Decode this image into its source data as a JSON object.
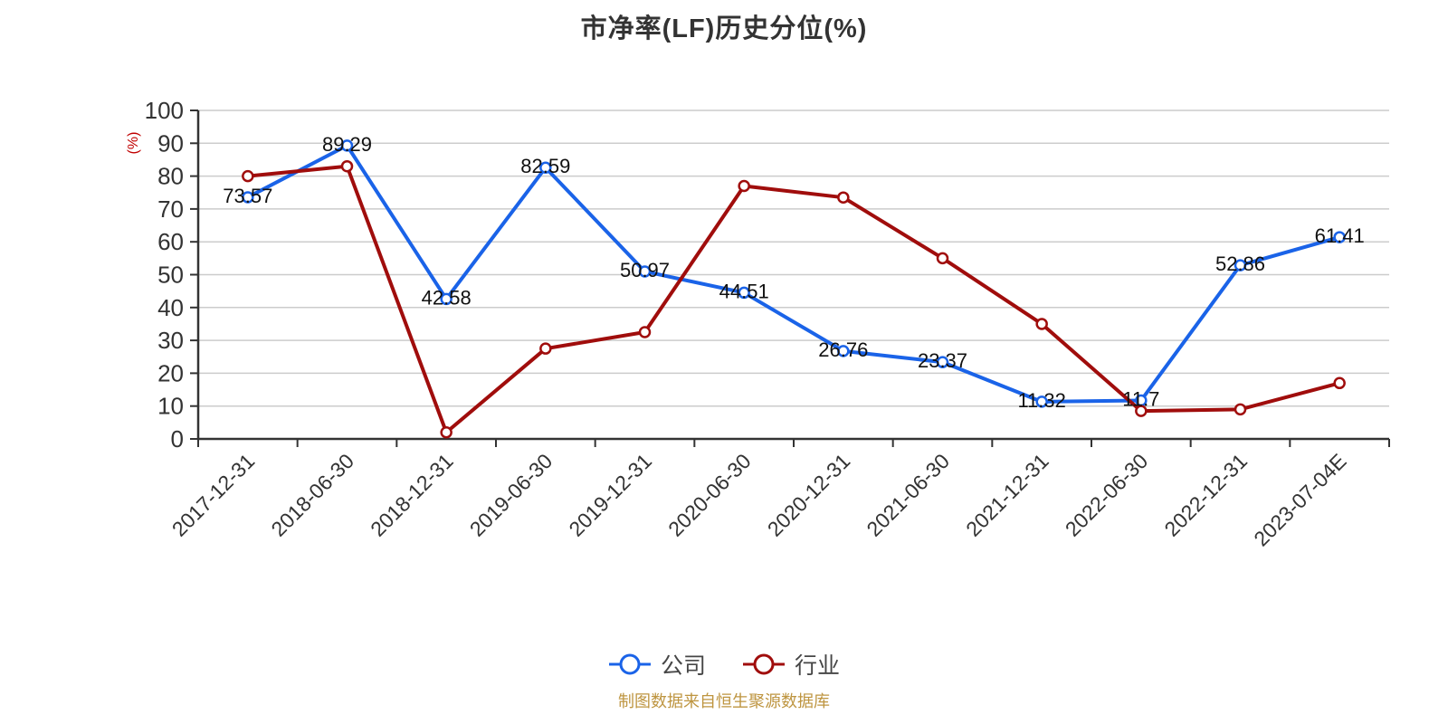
{
  "footer_note": "制图数据来自恒生聚源数据库",
  "chart_data": {
    "type": "line",
    "title": "市净率(LF)历史分位(%)",
    "xlabel": "",
    "ylabel": "(%)",
    "ylabel_color": "#C00000",
    "ylim": [
      0,
      100
    ],
    "ytick_interval": 10,
    "grid": true,
    "grid_color": "#cccccc",
    "axis_color": "#333333",
    "legend_position": "bottom",
    "x_labels_rotated_45": true,
    "categories": [
      "2017-12-31",
      "2018-06-30",
      "2018-12-31",
      "2019-06-30",
      "2019-12-31",
      "2020-06-30",
      "2020-12-31",
      "2021-06-30",
      "2021-12-31",
      "2022-06-30",
      "2022-12-31",
      "2023-07-04E"
    ],
    "series": [
      {
        "name": "公司",
        "color": "#1A63E8",
        "show_labels": true,
        "values": [
          73.57,
          89.29,
          42.58,
          82.59,
          50.97,
          44.51,
          26.76,
          23.37,
          11.32,
          11.7,
          52.86,
          61.41
        ]
      },
      {
        "name": "行业",
        "color": "#A00D0C",
        "show_labels": false,
        "values": [
          80,
          83,
          2,
          27.5,
          32.5,
          77,
          73.5,
          55,
          35,
          8.5,
          9,
          17
        ]
      }
    ]
  }
}
